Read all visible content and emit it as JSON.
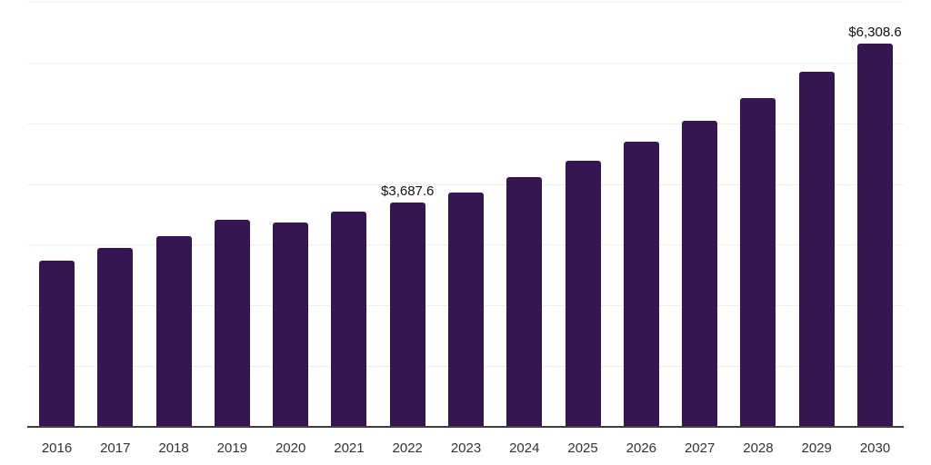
{
  "chart_data": {
    "type": "bar",
    "title": "",
    "xlabel": "",
    "ylabel": "",
    "categories": [
      "2016",
      "2017",
      "2018",
      "2019",
      "2020",
      "2021",
      "2022",
      "2023",
      "2024",
      "2025",
      "2026",
      "2027",
      "2028",
      "2029",
      "2030"
    ],
    "values": [
      2740,
      2940,
      3140,
      3405,
      3360,
      3550,
      3687.6,
      3865,
      4120,
      4380,
      4690,
      5045,
      5410,
      5845,
      6308.6
    ],
    "data_labels": [
      "",
      "",
      "",
      "",
      "",
      "",
      "$3,687.6",
      "",
      "",
      "",
      "",
      "",
      "",
      "",
      "$6,308.6"
    ],
    "ylim": [
      0,
      7000
    ],
    "gridline_step": 1000,
    "grid": "horizontal",
    "legend": "none",
    "y_axis_labels_visible": false,
    "colors": {
      "bar_fill": "#351552",
      "gridline": "#f0f0f0",
      "axis_line": "#3f3f3f",
      "tick_label": "#333333",
      "data_label": "#111111",
      "background": "#ffffff"
    }
  }
}
